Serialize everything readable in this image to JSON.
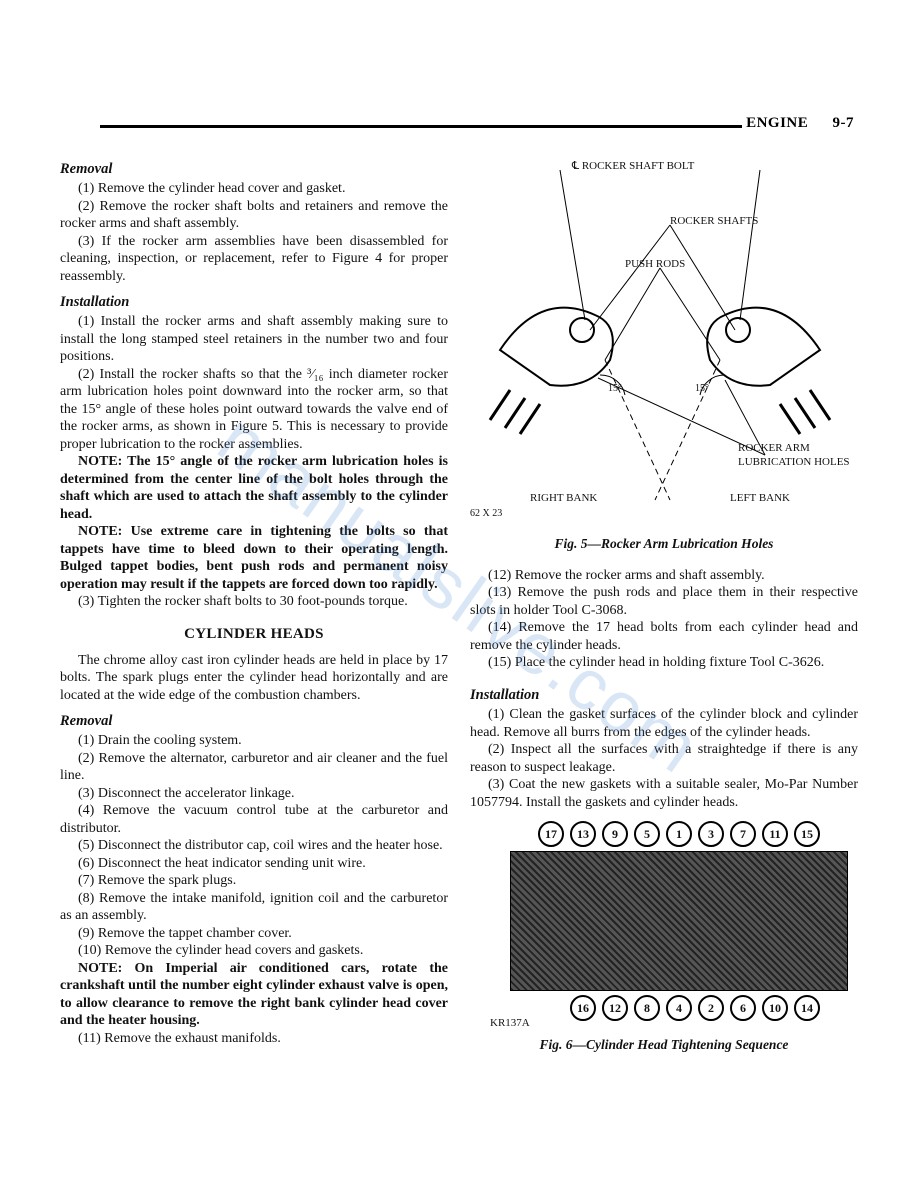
{
  "header": {
    "section": "ENGINE",
    "page": "9-7"
  },
  "watermark": "manualslive.com",
  "left": {
    "removal_h": "Removal",
    "r1": "(1) Remove the cylinder head cover and gasket.",
    "r2": "(2) Remove the rocker shaft bolts and retainers and remove the rocker arms and shaft assembly.",
    "r3": "(3) If the rocker arm assemblies have been disassembled for cleaning, inspection, or replacement, refer to Figure 4 for proper reassembly.",
    "install_h": "Installation",
    "i1": "(1) Install the rocker arms and shaft assembly making sure to install the long stamped steel retainers in the number two and four positions.",
    "i2": "(2) Install the rocker shafts so that the ³⁄₁₆ inch diameter rocker arm lubrication holes point downward into the rocker arm, so that the 15° angle of these holes point outward towards the valve end of the rocker arms, as shown in Figure 5. This is necessary to provide proper lubrication to the rocker assemblies.",
    "note1": "NOTE: The 15° angle of the rocker arm lubrication holes is determined from the center line of the bolt holes through the shaft which are used to attach the shaft assembly to the cylinder head.",
    "note2": "NOTE: Use extreme care in tightening the bolts so that tappets have time to bleed down to their operating length. Bulged tappet bodies, bent push rods and permanent noisy operation may result if the tappets are forced down too rapidly.",
    "i3": "(3) Tighten the rocker shaft bolts to 30 foot-pounds torque.",
    "cyl_h": "CYLINDER HEADS",
    "cyl_intro": "The chrome alloy cast iron cylinder heads are held in place by 17 bolts. The spark plugs enter the cylinder head horizontally and are located at the wide edge of the combustion chambers.",
    "removal2_h": "Removal",
    "c1": "(1) Drain the cooling system.",
    "c2": "(2) Remove the alternator, carburetor and air cleaner and the fuel line.",
    "c3": "(3) Disconnect the accelerator linkage.",
    "c4": "(4) Remove the vacuum control tube at the carburetor and distributor.",
    "c5": "(5) Disconnect the distributor cap, coil wires and the heater hose.",
    "c6": "(6) Disconnect the heat indicator sending unit wire.",
    "c7": "(7) Remove the spark plugs.",
    "c8": "(8) Remove the intake manifold, ignition coil and the carburetor as an assembly.",
    "c9": "(9) Remove the tappet chamber cover.",
    "c10": "(10) Remove the cylinder head covers and gaskets.",
    "note3": "NOTE: On Imperial air conditioned cars, rotate the crankshaft until the number eight cylinder exhaust valve is open, to allow clearance to remove the right bank cylinder head cover and the heater housing.",
    "c11": "(11) Remove the exhaust manifolds."
  },
  "right": {
    "fig5": {
      "caption": "Fig. 5—Rocker Arm Lubrication Holes",
      "labels": {
        "bolt": "℄ ROCKER SHAFT BOLT",
        "shafts": "ROCKER SHAFTS",
        "pushrods": "PUSH RODS",
        "lubholes": "ROCKER ARM\nLUBRICATION HOLES",
        "right": "RIGHT BANK",
        "left": "LEFT BANK",
        "angle1": "15°",
        "angle2": "15°",
        "code": "62 X 23"
      }
    },
    "s12": "(12) Remove the rocker arms and shaft assembly.",
    "s13": "(13) Remove the push rods and place them in their respective slots in holder Tool C-3068.",
    "s14": "(14) Remove the 17 head bolts from each cylinder head and remove the cylinder heads.",
    "s15": "(15) Place the cylinder head in holding fixture Tool C-3626.",
    "install_h": "Installation",
    "b1": "(1) Clean the gasket surfaces of the cylinder block and cylinder head. Remove all burrs from the edges of the cylinder heads.",
    "b2": "(2) Inspect all the surfaces with a straightedge if there is any reason to suspect leakage.",
    "b3": "(3) Coat the new gaskets with a suitable sealer, Mo-Par Number 1057794. Install the gaskets and cylinder heads.",
    "fig6": {
      "caption": "Fig. 6—Cylinder Head Tightening Sequence",
      "top_order": [
        "17",
        "13",
        "9",
        "5",
        "1",
        "3",
        "7",
        "11",
        "15"
      ],
      "bottom_order": [
        "16",
        "12",
        "8",
        "4",
        "2",
        "6",
        "10",
        "14"
      ],
      "code": "KR137A"
    }
  }
}
